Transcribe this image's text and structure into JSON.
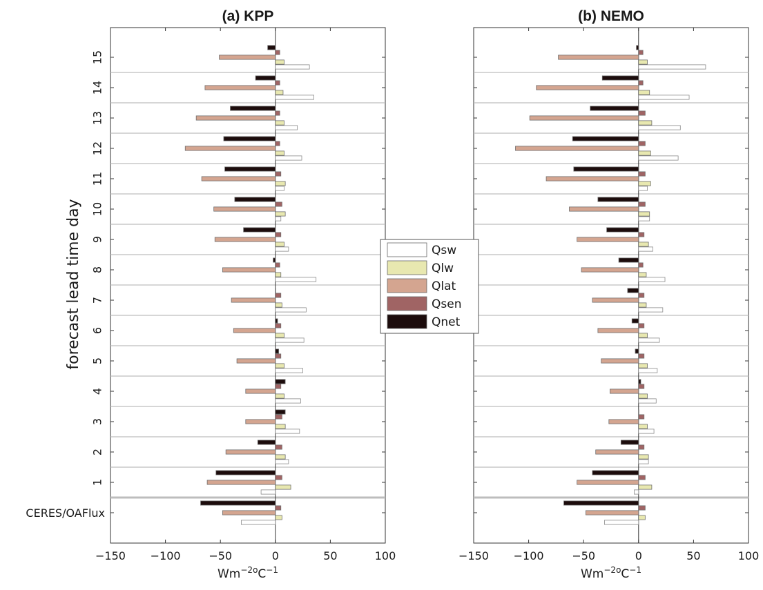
{
  "chart_data": {
    "type": "bar",
    "ylabel": "forecast lead time day",
    "xlabel_base": "Wm",
    "xlabel_sup1": "−2o",
    "xlabel_mid": "C",
    "xlabel_sup2": "−1",
    "xlim": [
      -150,
      100
    ],
    "xticks": [
      -150,
      -100,
      -50,
      0,
      50,
      100
    ],
    "xtick_labels": [
      "−150",
      "−100",
      "−50",
      "0",
      "50",
      "100"
    ],
    "categories": [
      "CERES/OAFlux",
      "1",
      "2",
      "3",
      "4",
      "5",
      "6",
      "7",
      "8",
      "9",
      "10",
      "11",
      "12",
      "13",
      "14",
      "15"
    ],
    "legend": {
      "placement": "center",
      "entries": [
        "Qsw",
        "Qlw",
        "Qlat",
        "Qsen",
        "Qnet"
      ]
    },
    "series_colors": {
      "Qsw": "#ffffff",
      "Qlw": "#e8e8b0",
      "Qlat": "#d4a590",
      "Qsen": "#a06464",
      "Qnet": "#1c0c0c"
    },
    "panels": [
      {
        "title": "(a) KPP",
        "series": [
          {
            "name": "Qsw",
            "values": [
              -31,
              -13,
              12,
              22,
              23,
              25,
              26,
              28,
              37,
              12,
              5,
              8,
              24,
              20,
              35,
              31
            ]
          },
          {
            "name": "Qlw",
            "values": [
              6,
              14,
              9,
              9,
              8,
              8,
              8,
              6,
              5,
              8,
              9,
              9,
              8,
              8,
              7,
              8
            ]
          },
          {
            "name": "Qlat",
            "values": [
              -48,
              -62,
              -45,
              -27,
              -27,
              -35,
              -38,
              -40,
              -48,
              -55,
              -56,
              -67,
              -82,
              -72,
              -64,
              -51
            ]
          },
          {
            "name": "Qsen",
            "values": [
              5,
              6,
              6,
              6,
              5,
              5,
              5,
              5,
              4,
              5,
              6,
              5,
              4,
              4,
              4,
              4
            ]
          },
          {
            "name": "Qnet",
            "values": [
              -68,
              -54,
              -16,
              9,
              9,
              3,
              2,
              0,
              -2,
              -29,
              -37,
              -46,
              -47,
              -41,
              -18,
              -7
            ]
          }
        ]
      },
      {
        "title": "(b) NEMO",
        "series": [
          {
            "name": "Qsw",
            "values": [
              -31,
              -4,
              9,
              14,
              16,
              17,
              19,
              22,
              24,
              13,
              10,
              8,
              36,
              38,
              46,
              61
            ]
          },
          {
            "name": "Qlw",
            "values": [
              6,
              12,
              9,
              8,
              8,
              8,
              8,
              7,
              7,
              9,
              10,
              11,
              11,
              12,
              10,
              8
            ]
          },
          {
            "name": "Qlat",
            "values": [
              -48,
              -56,
              -39,
              -27,
              -26,
              -34,
              -37,
              -42,
              -52,
              -56,
              -63,
              -84,
              -112,
              -99,
              -93,
              -73
            ]
          },
          {
            "name": "Qsen",
            "values": [
              6,
              6,
              5,
              5,
              5,
              5,
              5,
              5,
              4,
              5,
              6,
              6,
              6,
              6,
              4,
              4
            ]
          },
          {
            "name": "Qnet",
            "values": [
              -68,
              -42,
              -16,
              0,
              2,
              -3,
              -6,
              -10,
              -18,
              -29,
              -37,
              -59,
              -60,
              -44,
              -33,
              -2
            ]
          }
        ]
      }
    ]
  }
}
